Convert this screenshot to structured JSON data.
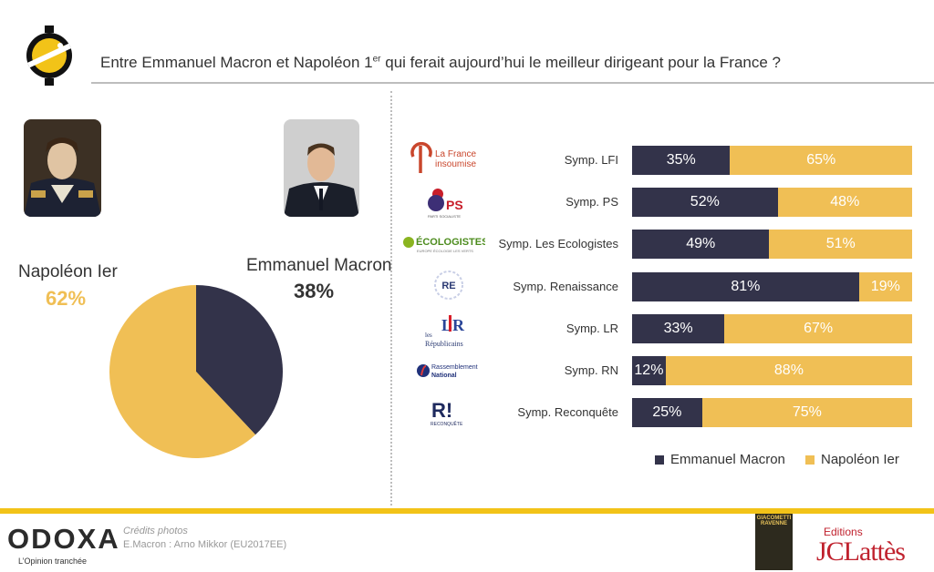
{
  "header": {
    "title_pre": "Entre Emmanuel Macron et Napoléon 1",
    "title_sup": "er",
    "title_post": " qui ferait aujourd’hui le meilleur dirigeant pour la France ?"
  },
  "colors": {
    "macron": "#33334a",
    "napoleon": "#f0bf55",
    "accent": "#f2c318"
  },
  "chart_data": [
    {
      "type": "pie",
      "slices": [
        {
          "name": "Napoléon Ier",
          "value": 62
        },
        {
          "name": "Emmanuel Macron",
          "value": 38
        }
      ],
      "labels": [
        {
          "name": "Napoléon Ier",
          "value_label": "62%"
        },
        {
          "name": "Emmanuel Macron",
          "value_label": "38%"
        }
      ]
    },
    {
      "type": "bar",
      "orientation": "horizontal",
      "stacked": true,
      "categories": [
        "Symp. LFI",
        "Symp. PS",
        "Symp. Les Ecologistes",
        "Symp. Renaissance",
        "Symp. LR",
        "Symp. RN",
        "Symp. Reconquête"
      ],
      "series": [
        {
          "name": "Emmanuel Macron",
          "values": [
            35,
            52,
            49,
            81,
            33,
            12,
            25
          ]
        },
        {
          "name": "Napoléon Ier",
          "values": [
            65,
            48,
            51,
            19,
            67,
            88,
            75
          ]
        }
      ],
      "legend": "bottom-right",
      "xlim": [
        0,
        100
      ]
    }
  ],
  "party_logos": [
    {
      "icon": "lfi-logo",
      "lines": [
        "La France",
        "insoumise"
      ]
    },
    {
      "icon": "ps-logo",
      "lines": [
        "PS",
        "PARTI SOCIALISTE"
      ]
    },
    {
      "icon": "ecologistes-logo",
      "lines": [
        "ÉCOLOGISTES",
        "EUROPE ÉCOLOGIE LES VERTS"
      ]
    },
    {
      "icon": "renaissance-logo",
      "lines": [
        "RE"
      ]
    },
    {
      "icon": "lr-logo",
      "lines": [
        "LR",
        "les",
        "Républicains"
      ]
    },
    {
      "icon": "rn-logo",
      "lines": [
        "Rassemblement",
        "National"
      ]
    },
    {
      "icon": "reconquete-logo",
      "lines": [
        "R!",
        "RECONQUÊTE"
      ]
    }
  ],
  "footer": {
    "brand": "ODOXA",
    "tagline": "L’Opinion tranchée",
    "credits_title": "Crédits photos",
    "credits_text": "E.Macron : Arno Mikkor (EU2017EE)",
    "book_title": [
      "GIACOMETTI",
      "RAVENNE"
    ],
    "publisher_line1": "Editions",
    "publisher_line2": "JCLattès"
  }
}
